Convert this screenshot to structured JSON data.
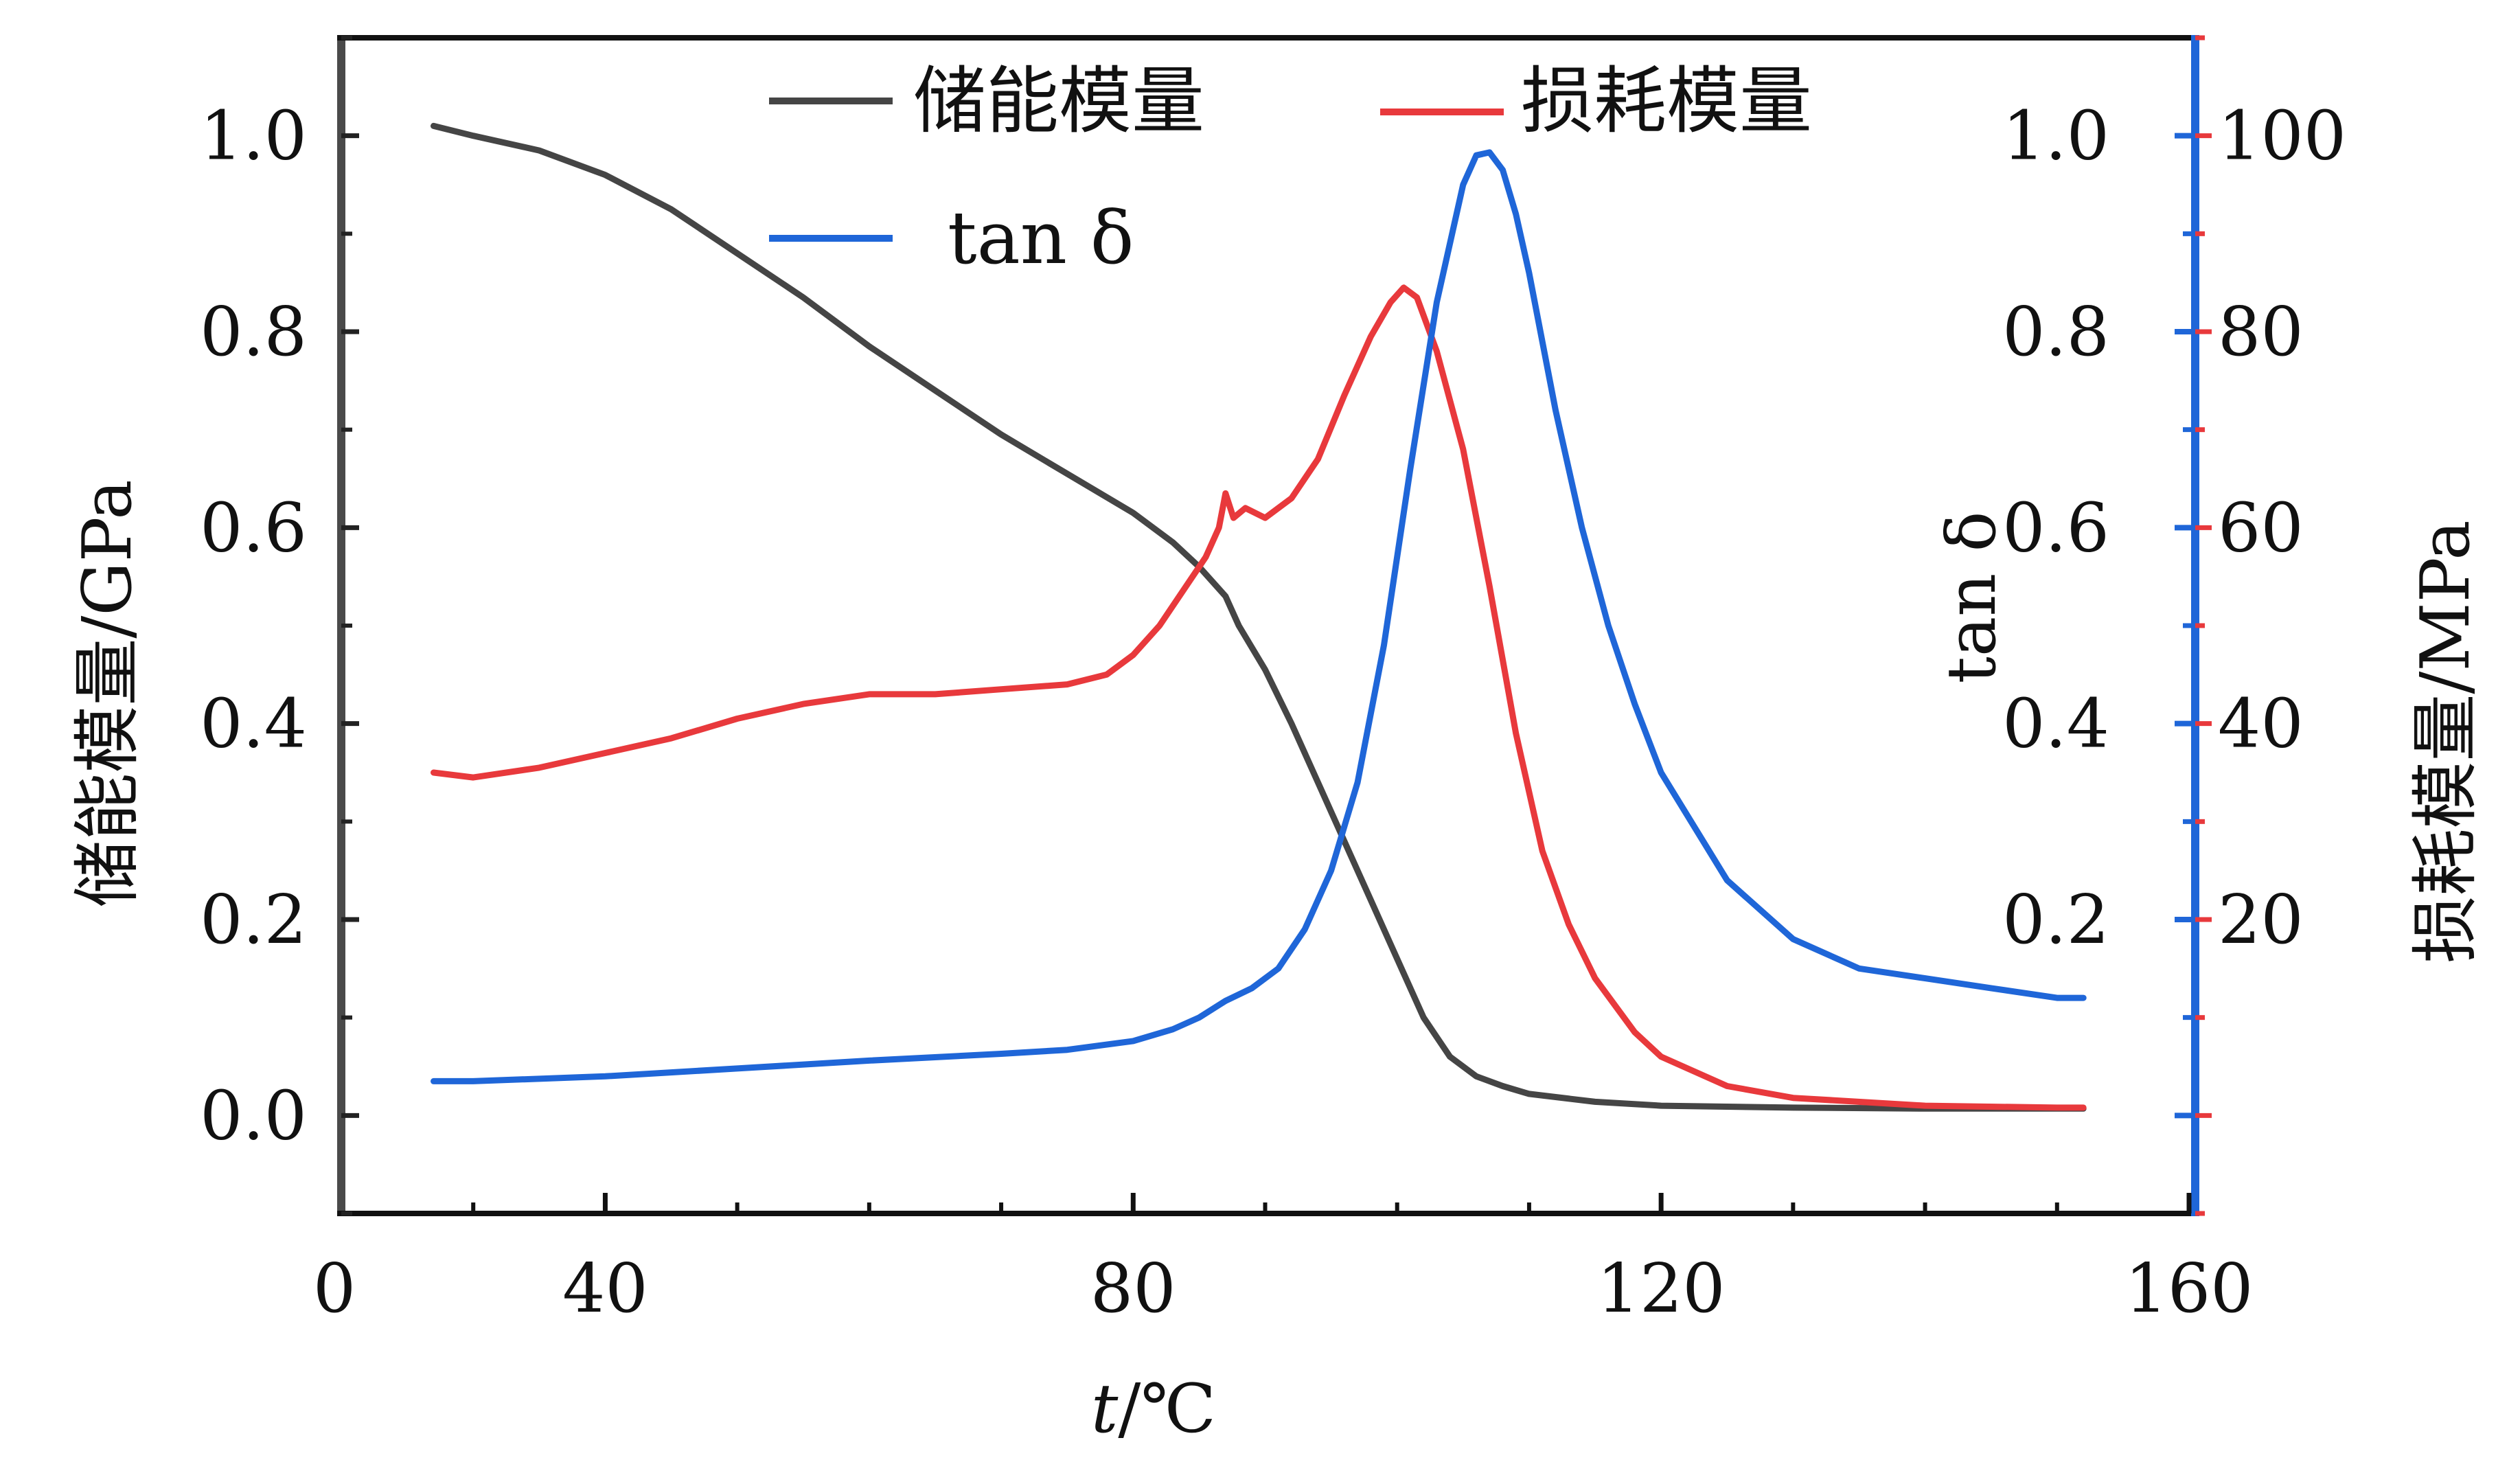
{
  "chart_data": {
    "type": "line",
    "xlabel_var": "t",
    "xlabel_unit": "/℃",
    "xlim": [
      20,
      160
    ],
    "x_ticks": [
      40,
      80,
      120,
      160
    ],
    "x_extra_label": "0",
    "left_axis": {
      "label": "储能模量/GPa",
      "ylim": [
        -0.1,
        1.1
      ],
      "ticks": [
        "0.0",
        "0.2",
        "0.4",
        "0.6",
        "0.8",
        "1.0"
      ],
      "tick_values": [
        0.0,
        0.2,
        0.4,
        0.6,
        0.8,
        1.0
      ]
    },
    "right_axis_tan": {
      "label": "tan δ",
      "ylim": [
        -0.1,
        1.1
      ],
      "ticks": [
        "0.2",
        "0.4",
        "0.6",
        "0.8",
        "1.0"
      ],
      "tick_values": [
        0.2,
        0.4,
        0.6,
        0.8,
        1.0
      ]
    },
    "right_axis_loss": {
      "label": "损耗模量/MPa",
      "ylim": [
        -10,
        110
      ],
      "ticks": [
        "20",
        "40",
        "60",
        "80",
        "100"
      ],
      "tick_values": [
        20,
        40,
        60,
        80,
        100
      ]
    },
    "legend_placement": "top",
    "series": [
      {
        "name": "储能模量",
        "axis": "left",
        "color": "#454545",
        "x": [
          27,
          30,
          35,
          40,
          45,
          50,
          55,
          60,
          65,
          70,
          75,
          80,
          83,
          85,
          87,
          88,
          90,
          92,
          94,
          96,
          98,
          100,
          102,
          104,
          106,
          108,
          110,
          115,
          120,
          130,
          140,
          150,
          152
        ],
        "values": [
          1.01,
          1.0,
          0.985,
          0.96,
          0.925,
          0.88,
          0.835,
          0.785,
          0.74,
          0.695,
          0.655,
          0.615,
          0.585,
          0.56,
          0.53,
          0.5,
          0.455,
          0.4,
          0.34,
          0.28,
          0.22,
          0.16,
          0.1,
          0.06,
          0.04,
          0.03,
          0.022,
          0.014,
          0.01,
          0.008,
          0.007,
          0.007,
          0.007
        ]
      },
      {
        "name": "损耗模量",
        "axis": "right_loss",
        "color": "#e8393c",
        "x": [
          27,
          30,
          35,
          40,
          45,
          50,
          55,
          60,
          65,
          70,
          75,
          78,
          80,
          82,
          84,
          85.5,
          86.5,
          87,
          87.6,
          88.5,
          90,
          92,
          94,
          96,
          98,
          99.5,
          100.5,
          101.5,
          103,
          105,
          107,
          109,
          111,
          113,
          115,
          118,
          120,
          125,
          130,
          140,
          150,
          152
        ],
        "values": [
          35,
          34.5,
          35.5,
          37,
          38.5,
          40.5,
          42,
          43,
          43,
          43.5,
          44,
          45,
          47,
          50,
          54,
          57,
          60,
          63.5,
          61,
          62,
          61,
          63,
          67,
          73.5,
          79.5,
          83,
          84.5,
          83.5,
          78,
          68,
          54,
          39,
          27,
          19.5,
          14,
          8.5,
          6,
          3,
          1.8,
          1.0,
          0.8,
          0.8
        ]
      },
      {
        "name": "tan δ",
        "axis": "right_tan",
        "color": "#1f66d8",
        "x": [
          27,
          30,
          40,
          50,
          60,
          70,
          75,
          80,
          83,
          85,
          87,
          89,
          91,
          93,
          95,
          97,
          99,
          101,
          103,
          105,
          106,
          107,
          108,
          109,
          110,
          112,
          114,
          116,
          118,
          120,
          125,
          130,
          135,
          140,
          145,
          150,
          152
        ],
        "values": [
          0.035,
          0.035,
          0.04,
          0.048,
          0.056,
          0.063,
          0.067,
          0.076,
          0.088,
          0.1,
          0.117,
          0.13,
          0.15,
          0.19,
          0.25,
          0.34,
          0.48,
          0.66,
          0.83,
          0.95,
          0.98,
          0.983,
          0.965,
          0.92,
          0.86,
          0.72,
          0.6,
          0.5,
          0.42,
          0.35,
          0.24,
          0.18,
          0.15,
          0.14,
          0.13,
          0.12,
          0.12
        ]
      }
    ]
  }
}
